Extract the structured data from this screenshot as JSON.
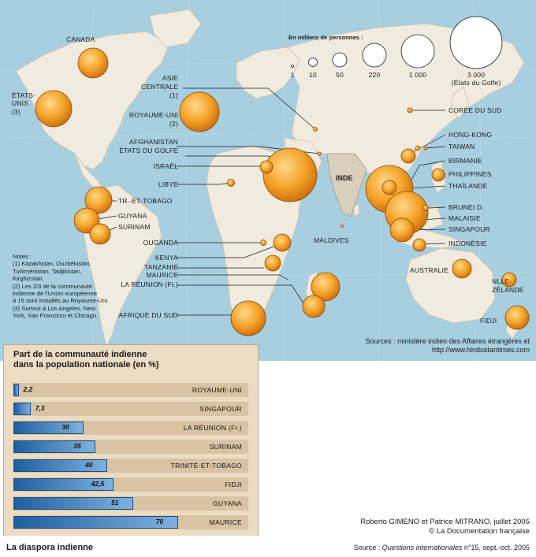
{
  "map": {
    "legend": {
      "title": "En milliers de personnes :",
      "items": [
        {
          "label": "1",
          "value": 1
        },
        {
          "label": "10",
          "value": 10
        },
        {
          "label": "50",
          "value": 50
        },
        {
          "label": "220",
          "value": 220
        },
        {
          "label": "1 000",
          "value": 1000
        },
        {
          "label": "3 000",
          "value": 3000,
          "sub": "(États du Golfe)"
        }
      ]
    },
    "india_label": "INDE",
    "labels": {
      "canada": "CANADA",
      "etats_unis_1": "ÉTATS-",
      "etats_unis_2": "UNIS",
      "etats_unis_3": "(3)",
      "asie_1": "ASIE",
      "asie_2": "CENTRALE",
      "asie_3": "(1)",
      "royaume_uni_1": "ROYAUME-UNI",
      "royaume_uni_2": "(2)",
      "afghanistan": "AFGHANISTAN",
      "etats_golfe": "ÉTATS DU GOLFE",
      "israel": "ISRAËL",
      "libye": "LIBYE",
      "trinidad": "TR.-ET-TOBAGO",
      "guyana": "GUYANA",
      "surinam": "SURINAM",
      "ouganda": "OUGANDA",
      "kenya": "KENYA",
      "tanzanie": "TANZANIE",
      "maurice": "MAURICE",
      "reunion": "LA RÉUNION (Fr.)",
      "afrique_sud": "AFRIQUE DU SUD",
      "maldives": "MALDIVES",
      "coree": "CORÉE DU SUD",
      "hong_kong": "HONG-KONG",
      "taiwan": "TAIWAN",
      "birmanie": "BIRMANIE",
      "philippines": "PHILIPPINES",
      "thailande": "THAÏLANDE",
      "brunei": "BRUNEI D.",
      "malaisie": "MALAISIE",
      "singapour": "SINGAPOUR",
      "indonesie": "INDONÉSIE",
      "australie": "AUSTRALIE",
      "nz_1": "NLLE-",
      "nz_2": "ZÉLANDE",
      "fidji": "FIDJI"
    },
    "notes": [
      "Notes :",
      "(1) Kazakhstan, Ouzbékistan,",
      "Turkménistan, Tadjikistan,",
      "Kirghizstan.",
      "(2) Les 2/3 de la communauté",
      "indienne de l'Union européenne",
      "à 15 sont installés au Royaume-Uni.",
      "(3) Surtout à Los Angeles, New",
      "York, San Francisco et Chicago."
    ],
    "sources_1": "Sources : ministère indien des Affaires étrangères et",
    "sources_2": "http://www.hindustantimes.com",
    "colors": {
      "sea": "#a7cfe0",
      "land": "#f1ebdf",
      "bubble": "#f0a12a",
      "bubble_edge": "#8a4a0a",
      "bar": "#3a7cc0"
    }
  },
  "chart_data": {
    "type": "bar",
    "title": "Part de la communauté indienne dans la population nationale (en %)",
    "title_lines": [
      "Part de la communauté indienne",
      "dans la population nationale (en %)"
    ],
    "categories": [
      "ROYAUME-UNI",
      "SINGAPOUR",
      "LA RÉUNION (Fr.)",
      "SURINAM",
      "TRINITÉ-ET-TOBAGO",
      "FIDJI",
      "GUYANA",
      "MAURICE"
    ],
    "values": [
      2.2,
      7.3,
      30,
      35,
      40,
      42.5,
      51,
      70
    ],
    "value_labels": [
      "2,2",
      "7,3",
      "30",
      "35",
      "40",
      "42,5",
      "51",
      "70"
    ],
    "xlim": [
      0,
      100
    ],
    "orientation": "horizontal"
  },
  "footer": {
    "credit_1": "Roberto GIMENO et Patrice MITRANO, juillet 2005",
    "credit_2": "© La Documentation française",
    "title": "La diaspora indienne",
    "source_prefix": "Source : ",
    "source_journal": "Questions internationales",
    "source_suffix": " n°15, sept.-oct. 2005"
  }
}
